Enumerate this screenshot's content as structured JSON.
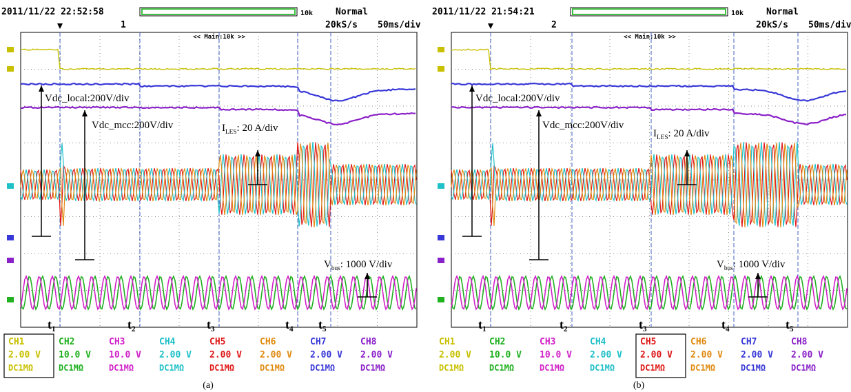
{
  "panels": [
    {
      "header": {
        "datetime": "2011/11/22 22:52:58",
        "acq_count": "1",
        "memory": "10k",
        "mode": "Normal",
        "sample_rate": "20kS/s",
        "timebase": "50ms/div"
      },
      "screen_label": "<< Main:10k >>",
      "annotations": {
        "vdc_local": "Vdc_local:200V/div",
        "vdc_mcc": "Vdc_mcc:200V/div",
        "i_les": {
          "symbol": "I",
          "sub": "LES",
          "text": ": 20 A/div"
        },
        "v_bus": {
          "symbol": "V",
          "sub": "bus",
          "text": ": 1000 V/div"
        }
      },
      "time_markers": [
        {
          "symbol": "t",
          "sub": "1"
        },
        {
          "symbol": "t",
          "sub": "2"
        },
        {
          "symbol": "t",
          "sub": "3"
        },
        {
          "symbol": "t",
          "sub": "4"
        },
        {
          "symbol": "t",
          "sub": "5"
        }
      ],
      "channels": [
        {
          "name": "CH1",
          "scale": "2.00 V",
          "coupling": "DC1MΩ"
        },
        {
          "name": "CH2",
          "scale": "10.0 V",
          "coupling": "DC1MΩ"
        },
        {
          "name": "CH3",
          "scale": "10.0 V",
          "coupling": "DC1MΩ"
        },
        {
          "name": "CH4",
          "scale": "2.00 V",
          "coupling": "DC1MΩ"
        },
        {
          "name": "CH5",
          "scale": "2.00 V",
          "coupling": "DC1MΩ"
        },
        {
          "name": "CH6",
          "scale": "2.00 V",
          "coupling": "DC1MΩ"
        },
        {
          "name": "CH7",
          "scale": "2.00 V",
          "coupling": "DC1MΩ"
        },
        {
          "name": "CH8",
          "scale": "2.00 V",
          "coupling": "DC1MΩ"
        }
      ],
      "selected_channel": "CH1",
      "caption": "(a)"
    },
    {
      "header": {
        "datetime": "2011/11/22 21:54:21",
        "acq_count": "2",
        "memory": "10k",
        "mode": "Normal",
        "sample_rate": "20kS/s",
        "timebase": "50ms/div"
      },
      "screen_label": "<< Main:10k >>",
      "annotations": {
        "vdc_local": "Vdc_local:200V/div",
        "vdc_mcc": "Vdc_mcc:200V/div",
        "i_les": {
          "symbol": "I",
          "sub": "LES",
          "text": ": 20 A/div"
        },
        "v_bus": {
          "symbol": "V",
          "sub": "bus",
          "text": ": 1000 V/div"
        }
      },
      "time_markers": [
        {
          "symbol": "t",
          "sub": "1"
        },
        {
          "symbol": "t",
          "sub": "2"
        },
        {
          "symbol": "t",
          "sub": "3"
        },
        {
          "symbol": "t",
          "sub": "4"
        },
        {
          "symbol": "t",
          "sub": "5"
        }
      ],
      "channels": [
        {
          "name": "CH1",
          "scale": "2.00 V",
          "coupling": "DC1MΩ"
        },
        {
          "name": "CH2",
          "scale": "10.0 V",
          "coupling": "DC1MΩ"
        },
        {
          "name": "CH3",
          "scale": "10.0 V",
          "coupling": "DC1MΩ"
        },
        {
          "name": "CH4",
          "scale": "2.00 V",
          "coupling": "DC1MΩ"
        },
        {
          "name": "CH5",
          "scale": "2.00 V",
          "coupling": "DC1MΩ"
        },
        {
          "name": "CH6",
          "scale": "2.00 V",
          "coupling": "DC1MΩ"
        },
        {
          "name": "CH7",
          "scale": "2.00 V",
          "coupling": "DC1MΩ"
        },
        {
          "name": "CH8",
          "scale": "2.00 V",
          "coupling": "DC1MΩ"
        }
      ],
      "selected_channel": "CH5",
      "caption": "(b)"
    }
  ]
}
